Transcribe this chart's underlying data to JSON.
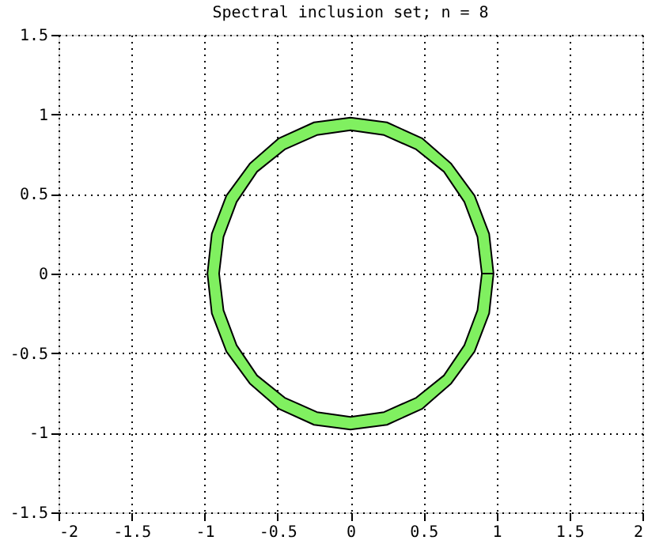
{
  "chart_data": {
    "type": "area",
    "title": "Spectral inclusion set; n = 8",
    "series": [
      {
        "color": "#80f060",
        "x": [
          0.98,
          0.95,
          0.85,
          0.69,
          0.49,
          0.25,
          0,
          -0.25,
          -0.49,
          -0.69,
          -0.85,
          -0.95,
          -0.98,
          -0.95,
          -0.85,
          -0.69,
          -0.49,
          -0.25,
          0,
          0.25,
          0.49,
          0.69,
          0.85,
          0.95,
          0.98,
          0.9,
          0.87,
          0.78,
          0.64,
          0.45,
          0.23,
          0,
          -0.23,
          -0.45,
          -0.64,
          -0.78,
          -0.87,
          -0.9,
          -0.87,
          -0.78,
          -0.64,
          -0.45,
          -0.23,
          0,
          0.23,
          0.45,
          0.64,
          0.78,
          0.87,
          0.9
        ],
        "values": [
          0,
          0.25,
          0.49,
          0.69,
          0.85,
          0.95,
          0.98,
          0.95,
          0.85,
          0.69,
          0.49,
          0.25,
          0,
          -0.25,
          -0.49,
          -0.69,
          -0.85,
          -0.95,
          -0.98,
          -0.95,
          -0.85,
          -0.69,
          -0.49,
          -0.25,
          0,
          0,
          -0.23,
          -0.45,
          -0.64,
          -0.78,
          -0.87,
          -0.9,
          -0.87,
          -0.78,
          -0.64,
          -0.45,
          -0.23,
          0,
          0.23,
          0.45,
          0.64,
          0.78,
          0.87,
          0.9,
          0.87,
          0.78,
          0.64,
          0.45,
          0.23,
          0
        ]
      }
    ],
    "xlim": [
      -2,
      2
    ],
    "xticks": [
      -2,
      -1.5,
      -1,
      -0.5,
      0,
      0.5,
      1,
      1.5,
      2
    ],
    "ylim": [
      -1.5,
      1.5
    ],
    "yticks": [
      -1.5,
      -1,
      -0.5,
      0,
      0.5,
      1,
      1.5
    ],
    "grid": true,
    "line_style": "solid"
  }
}
